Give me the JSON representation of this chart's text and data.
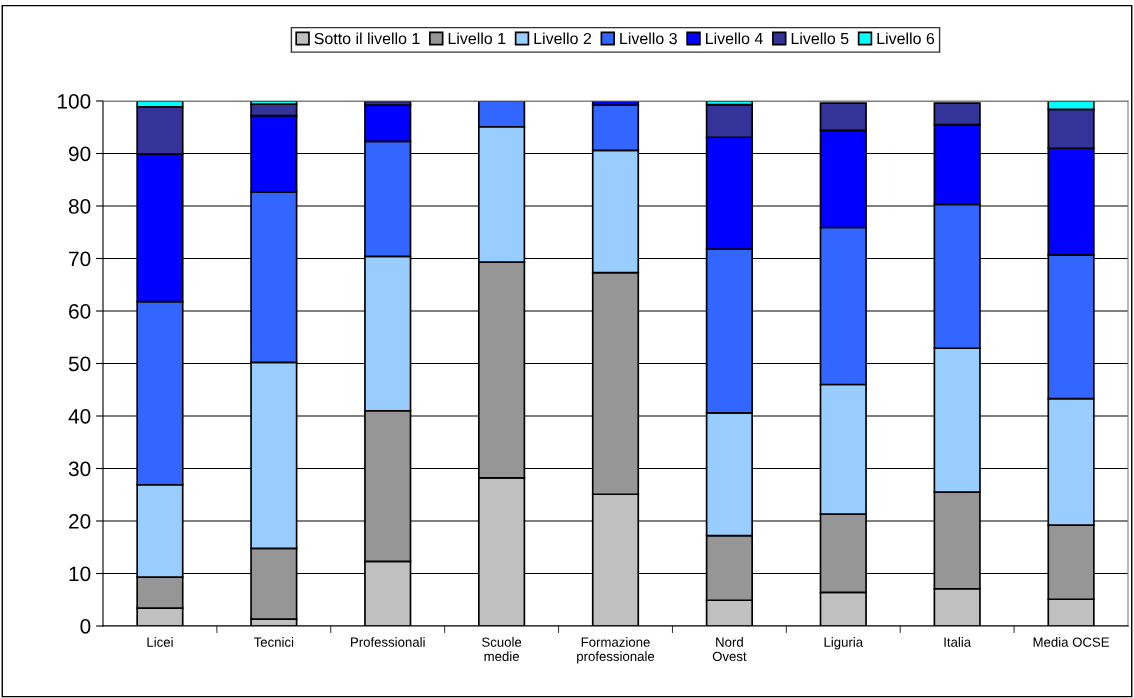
{
  "chart_data": {
    "type": "bar",
    "stacked": true,
    "categories": [
      "Licei",
      "Tecnici",
      "Professionali",
      "Scuole\nmedie",
      "Formazione\nprofessionale",
      "Nord\nOvest",
      "Liguria",
      "Italia",
      "Media OCSE"
    ],
    "series": [
      {
        "name": "Sotto il livello 1",
        "color": "#c0c0c0",
        "values": [
          3.4,
          1.3,
          12.3,
          28.2,
          25.1,
          4.9,
          6.4,
          7.1,
          5.1
        ]
      },
      {
        "name": "Livello 1",
        "color": "#969696",
        "values": [
          5.9,
          13.5,
          28.7,
          41.1,
          42.2,
          12.3,
          14.9,
          18.4,
          14.1
        ]
      },
      {
        "name": "Livello 2",
        "color": "#99ccff",
        "values": [
          17.6,
          35.4,
          29.4,
          25.8,
          23.3,
          23.4,
          24.7,
          27.4,
          24.1
        ]
      },
      {
        "name": "Livello 3",
        "color": "#3366ff",
        "values": [
          34.9,
          32.5,
          21.9,
          4.9,
          8.6,
          31.2,
          29.9,
          27.4,
          27.4
        ]
      },
      {
        "name": "Livello 4",
        "color": "#0000ff",
        "values": [
          28.1,
          14.5,
          6.9,
          null,
          0.8,
          21.3,
          18.5,
          15.2,
          20.3
        ]
      },
      {
        "name": "Livello 5",
        "color": "#333399",
        "values": [
          9.0,
          2.2,
          0.7,
          null,
          null,
          6.2,
          5.2,
          4.1,
          7.4
        ]
      },
      {
        "name": "Livello 6",
        "color": "#00ffff",
        "values": [
          1.1,
          0.6,
          null,
          null,
          null,
          0.7,
          null,
          null,
          1.6
        ]
      }
    ],
    "ylim": [
      0,
      100
    ],
    "yticks": [
      0,
      10,
      20,
      30,
      40,
      50,
      60,
      70,
      80,
      90,
      100
    ],
    "grid": "y",
    "legend": "top"
  }
}
